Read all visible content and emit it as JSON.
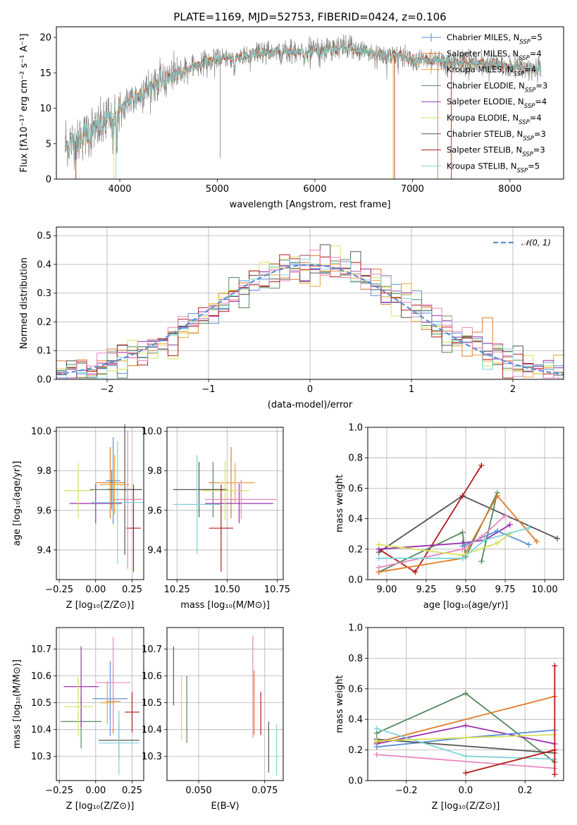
{
  "figure": {
    "title": "PLATE=1169, MJD=52753, FIBERID=0424, z=0.106",
    "colors": {
      "chabrier_miles": "#5b8fd6",
      "salpeter_miles": "#e07b2a",
      "kroupa_miles": "#e8a33b",
      "chabrier_elodie": "#55885d",
      "salpeter_elodie": "#9a2fb0",
      "kroupa_elodie": "#d6e25c",
      "chabrier_stelib": "#555555",
      "salpeter_stelib": "#b31919",
      "kroupa_stelib": "#7fd3d8",
      "pink": "#e886be",
      "gaussian": "#5b8fd6"
    }
  },
  "chart_data": [
    {
      "type": "line",
      "id": "spectrum",
      "xlabel": "wavelength [Angstrom, rest frame]",
      "ylabel": "Flux [fλ10⁻¹⁷ erg cm⁻² s⁻¹ A⁻¹]",
      "xlim": [
        3350,
        8550
      ],
      "ylim": [
        0,
        21.5
      ],
      "xticks": [
        4000,
        5000,
        6000,
        7000,
        8000
      ],
      "yticks": [
        0,
        5,
        10,
        15,
        20
      ],
      "x_range": [
        3440,
        8320
      ],
      "continuum": {
        "x": [
          3440,
          3600,
          3800,
          3950,
          4100,
          4300,
          4500,
          4700,
          4900,
          5100,
          5300,
          5500,
          5700,
          5900,
          6100,
          6300,
          6500,
          6700,
          6900,
          7100,
          7300,
          7500,
          7700,
          7900,
          8100,
          8320
        ],
        "y": [
          4.5,
          5.8,
          7.5,
          9.0,
          11.0,
          13.0,
          14.2,
          15.6,
          16.6,
          17.0,
          17.3,
          17.8,
          18.1,
          18.2,
          18.0,
          18.5,
          18.0,
          17.6,
          17.3,
          16.8,
          16.5,
          16.5,
          16.3,
          16.1,
          15.8,
          15.4
        ]
      },
      "legend": [
        {
          "label": "Chabrier MILES, N",
          "sub": "SSP",
          "tail": "=5",
          "color": "chabrier_miles"
        },
        {
          "label": "Salpeter MILES, N",
          "sub": "SSP",
          "tail": "=4",
          "color": "salpeter_miles"
        },
        {
          "label": "Kroupa MILES, N",
          "sub": "SSP",
          "tail": "=4",
          "color": "kroupa_miles"
        },
        {
          "label": "Chabrier ELODIE, N",
          "sub": "SSP",
          "tail": "=3",
          "color": "chabrier_elodie"
        },
        {
          "label": "Salpeter ELODIE, N",
          "sub": "SSP",
          "tail": "=4",
          "color": "salpeter_elodie"
        },
        {
          "label": "Kroupa ELODIE, N",
          "sub": "SSP",
          "tail": "=4",
          "color": "kroupa_elodie"
        },
        {
          "label": "Chabrier STELIB, N",
          "sub": "SSP",
          "tail": "=3",
          "color": "chabrier_stelib"
        },
        {
          "label": "Salpeter STELIB, N",
          "sub": "SSP",
          "tail": "=3",
          "color": "salpeter_stelib"
        },
        {
          "label": "Kroupa STELIB, N",
          "sub": "SSP",
          "tail": "=5",
          "color": "kroupa_stelib"
        }
      ],
      "legend_loc": "top-right"
    },
    {
      "type": "line",
      "id": "residuals",
      "xlabel": "(data-model)/error",
      "ylabel": "Normed distribution",
      "xlim": [
        -2.5,
        2.5
      ],
      "ylim": [
        0,
        0.53
      ],
      "xticks": [
        -2,
        -1,
        0,
        1,
        2
      ],
      "xtick_labels": [
        "−2",
        "−1",
        "0",
        "1",
        "2"
      ],
      "yticks": [
        0,
        0.1,
        0.2,
        0.3,
        0.4,
        0.5
      ],
      "ytick_labels": [
        "0.0",
        "0.1",
        "0.2",
        "0.3",
        "0.4",
        "0.5"
      ],
      "grid": true,
      "bin_width": 0.1,
      "legend": {
        "label": "𝒩(0, 1)",
        "color": "gaussian",
        "loc": "top-right"
      }
    },
    {
      "type": "scatter",
      "id": "z_age",
      "xlabel": "Z [log₁₀(Z/Z⊙)]",
      "ylabel": "age  [log₁₀(age/yr)]",
      "xlim": [
        -0.27,
        0.33
      ],
      "ylim": [
        9.25,
        10.02
      ],
      "xticks": [
        -0.25,
        0,
        0.25
      ],
      "xtick_labels": [
        "−0.25",
        "0.00",
        "0.25"
      ],
      "yticks": [
        9.4,
        9.6,
        9.8,
        10.0
      ],
      "ytick_labels": [
        "9.4",
        "9.6",
        "9.8",
        "10.0"
      ],
      "grid": true,
      "points": [
        {
          "x": 0.1,
          "xerr": 0.1,
          "y": 9.74,
          "yerr": 0.18,
          "color": "salpeter_miles"
        },
        {
          "x": 0.12,
          "xerr": 0.05,
          "y": 9.75,
          "yerr": 0.22,
          "color": "chabrier_miles"
        },
        {
          "x": 0.11,
          "xerr": 0.15,
          "y": 9.705,
          "yerr": 0.1,
          "color": "chabrier_elodie"
        },
        {
          "x": 0.0,
          "xerr": 0.18,
          "y": 9.635,
          "yerr": 0.1,
          "color": "salpeter_elodie"
        },
        {
          "x": -0.12,
          "xerr": 0.1,
          "y": 9.7,
          "yerr": 0.14,
          "color": "kroupa_elodie"
        },
        {
          "x": 0.2,
          "xerr": 0.12,
          "y": 9.705,
          "yerr": 0.33,
          "color": "chabrier_stelib"
        },
        {
          "x": 0.26,
          "xerr": 0.05,
          "y": 9.51,
          "yerr": 0.22,
          "color": "salpeter_stelib"
        },
        {
          "x": 0.15,
          "xerr": 0.18,
          "y": 9.64,
          "yerr": 0.31,
          "color": "kroupa_stelib"
        },
        {
          "x": 0.22,
          "xerr": 0.1,
          "y": 9.655,
          "yerr": 0.35,
          "color": "pink"
        },
        {
          "x": 0.13,
          "xerr": 0.1,
          "y": 9.73,
          "yerr": 0.15,
          "color": "kroupa_miles"
        }
      ]
    },
    {
      "type": "scatter",
      "id": "mass_age",
      "xlabel": "mass [log₁₀(M/M⊙)]",
      "xlim": [
        10.2,
        10.78
      ],
      "ylim": [
        9.25,
        10.02
      ],
      "xticks": [
        10.25,
        10.5,
        10.75
      ],
      "xtick_labels": [
        "10.25",
        "10.50",
        "10.75"
      ],
      "yticks": [
        9.4,
        9.6,
        9.8,
        10.0
      ],
      "ytick_labels": [
        "9.4",
        "9.6",
        "9.8",
        "10.0"
      ],
      "grid": true,
      "points": [
        {
          "x": 10.52,
          "xerr": 0.11,
          "y": 9.74,
          "yerr": 0.18,
          "color": "salpeter_miles"
        },
        {
          "x": 10.54,
          "xerr": 0.1,
          "y": 9.74,
          "yerr": 0.1,
          "color": "kroupa_miles"
        },
        {
          "x": 10.43,
          "xerr": 0.07,
          "y": 9.705,
          "yerr": 0.14,
          "color": "chabrier_elodie"
        },
        {
          "x": 10.56,
          "xerr": 0.17,
          "y": 9.635,
          "yerr": 0.1,
          "color": "salpeter_elodie"
        },
        {
          "x": 10.49,
          "xerr": 0.12,
          "y": 9.7,
          "yerr": 0.15,
          "color": "kroupa_elodie"
        },
        {
          "x": 10.36,
          "xerr": 0.13,
          "y": 9.705,
          "yerr": 0.14,
          "color": "chabrier_stelib"
        },
        {
          "x": 10.47,
          "xerr": 0.06,
          "y": 9.51,
          "yerr": 0.22,
          "color": "salpeter_stelib"
        },
        {
          "x": 10.35,
          "xerr": 0.12,
          "y": 9.63,
          "yerr": 0.25,
          "color": "kroupa_stelib"
        },
        {
          "x": 10.57,
          "xerr": 0.18,
          "y": 9.655,
          "yerr": 0.1,
          "color": "pink"
        }
      ]
    },
    {
      "type": "line",
      "id": "age_weight",
      "xlabel": "age  [log₁₀(age/yr)]",
      "ylabel": "mass weight",
      "xlim": [
        8.88,
        10.12
      ],
      "ylim": [
        0,
        1
      ],
      "xticks": [
        9.0,
        9.25,
        9.5,
        9.75,
        10.0
      ],
      "xtick_labels": [
        "9.00",
        "9.25",
        "9.50",
        "9.75",
        "10.00"
      ],
      "yticks": [
        0,
        0.2,
        0.4,
        0.6,
        0.8,
        1.0
      ],
      "ytick_labels": [
        "0.0",
        "0.2",
        "0.4",
        "0.6",
        "0.8",
        "1.0"
      ],
      "grid": true,
      "series": [
        {
          "color": "chabrier_stelib",
          "x": [
            8.95,
            9.48,
            10.08
          ],
          "y": [
            0.18,
            0.55,
            0.27
          ]
        },
        {
          "color": "salpeter_stelib",
          "x": [
            8.95,
            9.18,
            9.48,
            9.6
          ],
          "y": [
            0.2,
            0.05,
            0.55,
            0.75
          ]
        },
        {
          "color": "chabrier_elodie",
          "x": [
            8.95,
            9.48,
            9.5,
            9.7,
            9.6
          ],
          "y": [
            0.05,
            0.31,
            0.15,
            0.57,
            0.12
          ]
        },
        {
          "color": "salpeter_miles",
          "x": [
            8.95,
            9.48,
            9.7,
            9.95
          ],
          "y": [
            0.05,
            0.14,
            0.55,
            0.25
          ]
        },
        {
          "color": "salpeter_elodie",
          "x": [
            8.95,
            9.48,
            9.62,
            9.78
          ],
          "y": [
            0.2,
            0.24,
            0.26,
            0.36
          ]
        },
        {
          "color": "chabrier_miles",
          "x": [
            9.48,
            9.7,
            9.9
          ],
          "y": [
            0.22,
            0.32,
            0.23
          ]
        },
        {
          "color": "pink",
          "x": [
            8.95,
            9.48,
            9.6,
            9.75
          ],
          "y": [
            0.08,
            0.2,
            0.28,
            0.42
          ]
        },
        {
          "color": "kroupa_elodie",
          "x": [
            8.95,
            9.48,
            9.7,
            9.78
          ],
          "y": [
            0.23,
            0.16,
            0.24,
            0.3
          ]
        },
        {
          "color": "kroupa_stelib",
          "x": [
            8.95,
            9.48,
            9.62,
            9.9
          ],
          "y": [
            0.14,
            0.14,
            0.26,
            0.34
          ]
        }
      ]
    },
    {
      "type": "scatter",
      "id": "z_mass",
      "xlabel": "Z [log₁₀(Z/Z⊙)]",
      "ylabel": "mass [log₁₀(M/M⊙)]",
      "xlim": [
        -0.27,
        0.33
      ],
      "ylim": [
        10.21,
        10.78
      ],
      "xticks": [
        -0.25,
        0,
        0.25
      ],
      "xtick_labels": [
        "−0.25",
        "0.00",
        "0.25"
      ],
      "yticks": [
        10.3,
        10.4,
        10.5,
        10.6,
        10.7
      ],
      "ytick_labels": [
        "10.3",
        "10.4",
        "10.5",
        "10.6",
        "10.7"
      ],
      "grid": true,
      "points": [
        {
          "x": 0.1,
          "xerr": 0.12,
          "y": 10.515,
          "yerr": 0.14,
          "color": "chabrier_miles"
        },
        {
          "x": 0.12,
          "xerr": 0.05,
          "y": 10.505,
          "yerr": 0.12,
          "color": "salpeter_miles"
        },
        {
          "x": -0.1,
          "xerr": 0.14,
          "y": 10.43,
          "yerr": 0.1,
          "color": "chabrier_elodie"
        },
        {
          "x": -0.1,
          "xerr": 0.12,
          "y": 10.56,
          "yerr": 0.15,
          "color": "salpeter_elodie"
        },
        {
          "x": -0.12,
          "xerr": 0.1,
          "y": 10.485,
          "yerr": 0.11,
          "color": "kroupa_elodie"
        },
        {
          "x": 0.16,
          "xerr": 0.14,
          "y": 10.36,
          "yerr": 0.07,
          "color": "chabrier_stelib"
        },
        {
          "x": 0.25,
          "xerr": 0.05,
          "y": 10.465,
          "yerr": 0.075,
          "color": "salpeter_stelib"
        },
        {
          "x": 0.16,
          "xerr": 0.14,
          "y": 10.35,
          "yerr": 0.12,
          "color": "kroupa_stelib"
        },
        {
          "x": 0.12,
          "xerr": 0.12,
          "y": 10.575,
          "yerr": 0.17,
          "color": "pink"
        },
        {
          "x": 0.08,
          "xerr": 0.05,
          "y": 10.5,
          "yerr": 0.08,
          "color": "kroupa_miles"
        }
      ]
    },
    {
      "type": "scatter",
      "id": "ebv_mass",
      "xlabel": "E(B-V)",
      "xlim": [
        0.038,
        0.082
      ],
      "ylim": [
        10.21,
        10.78
      ],
      "xticks": [
        0.05,
        0.075
      ],
      "xtick_labels": [
        "0.050",
        "0.075"
      ],
      "yticks": [
        10.3,
        10.4,
        10.5,
        10.6,
        10.7
      ],
      "ytick_labels": [
        "10.3",
        "10.4",
        "10.5",
        "10.6",
        "10.7"
      ],
      "grid": true,
      "bars": [
        {
          "x": 0.0405,
          "ylo": 10.49,
          "yhi": 10.71,
          "color": "salpeter_elodie"
        },
        {
          "x": 0.0435,
          "ylo": 10.36,
          "yhi": 10.6,
          "color": "kroupa_elodie"
        },
        {
          "x": 0.0455,
          "ylo": 10.35,
          "yhi": 10.6,
          "color": "chabrier_elodie"
        },
        {
          "x": 0.0705,
          "ylo": 10.37,
          "yhi": 10.75,
          "color": "pink"
        },
        {
          "x": 0.071,
          "ylo": 10.38,
          "yhi": 10.62,
          "color": "salpeter_miles"
        },
        {
          "x": 0.0735,
          "ylo": 10.38,
          "yhi": 10.54,
          "color": "salpeter_stelib"
        },
        {
          "x": 0.0765,
          "ylo": 10.24,
          "yhi": 10.43,
          "color": "chabrier_stelib"
        },
        {
          "x": 0.0795,
          "ylo": 10.23,
          "yhi": 10.42,
          "color": "kroupa_stelib"
        }
      ]
    },
    {
      "type": "line",
      "id": "z_weight",
      "xlabel": "Z [log₁₀(Z/Z⊙)]",
      "ylabel": "mass weight",
      "xlim": [
        -0.33,
        0.33
      ],
      "ylim": [
        0,
        1
      ],
      "xticks": [
        -0.2,
        0,
        0.2
      ],
      "xtick_labels": [
        "−0.2",
        "0.0",
        "0.2"
      ],
      "yticks": [
        0,
        0.2,
        0.4,
        0.6,
        0.8,
        1.0
      ],
      "ytick_labels": [
        "0.0",
        "0.2",
        "0.4",
        "0.6",
        "0.8",
        "1.0"
      ],
      "grid": true,
      "series": [
        {
          "color": "chabrier_elodie",
          "x": [
            -0.3,
            0.0,
            0.3
          ],
          "y": [
            0.31,
            0.57,
            0.12
          ]
        },
        {
          "color": "salpeter_miles",
          "x": [
            -0.3,
            0.3
          ],
          "y": [
            0.25,
            0.55
          ]
        },
        {
          "color": "salpeter_elodie",
          "x": [
            -0.3,
            0.0,
            0.3
          ],
          "y": [
            0.24,
            0.36,
            0.24
          ]
        },
        {
          "color": "chabrier_miles",
          "x": [
            -0.3,
            0.0,
            0.3
          ],
          "y": [
            0.22,
            0.28,
            0.33
          ]
        },
        {
          "color": "chabrier_stelib",
          "x": [
            -0.3,
            0.3
          ],
          "y": [
            0.27,
            0.18
          ]
        },
        {
          "color": "kroupa_stelib",
          "x": [
            -0.3,
            0.0,
            0.3
          ],
          "y": [
            0.34,
            0.16,
            0.14
          ]
        },
        {
          "color": "kroupa_elodie",
          "x": [
            -0.3,
            0.0,
            0.3
          ],
          "y": [
            0.26,
            0.28,
            0.3
          ]
        },
        {
          "color": "pink",
          "x": [
            -0.3,
            0.3
          ],
          "y": [
            0.17,
            0.08
          ]
        },
        {
          "color": "salpeter_stelib",
          "x": [
            0.0,
            0.3
          ],
          "y": [
            0.05,
            0.2
          ]
        }
      ],
      "vertical_bar": {
        "x": 0.3,
        "ylo": 0.04,
        "yhi": 0.75,
        "color": "salpeter_stelib"
      }
    }
  ]
}
